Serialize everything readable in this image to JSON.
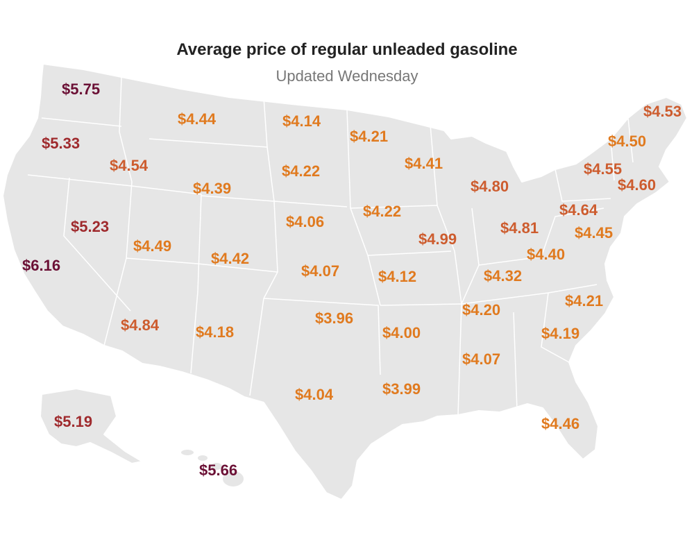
{
  "header": {
    "title": "Average price of regular unleaded gasoline",
    "subtitle": "Updated Wednesday"
  },
  "price_tiers": {
    "low": "#e07a1f",
    "mid": "#cd5c2e",
    "high": "#9f2a2d",
    "very_high": "#6b1035"
  },
  "states": [
    {
      "state": "WA",
      "price": "$5.75",
      "tier": "very_high"
    },
    {
      "state": "OR",
      "price": "$5.33",
      "tier": "high"
    },
    {
      "state": "CA",
      "price": "$6.16",
      "tier": "very_high"
    },
    {
      "state": "NV",
      "price": "$5.23",
      "tier": "high"
    },
    {
      "state": "ID",
      "price": "$4.54",
      "tier": "mid"
    },
    {
      "state": "MT",
      "price": "$4.44",
      "tier": "low"
    },
    {
      "state": "WY",
      "price": "$4.39",
      "tier": "low"
    },
    {
      "state": "UT",
      "price": "$4.49",
      "tier": "low"
    },
    {
      "state": "AZ",
      "price": "$4.84",
      "tier": "mid"
    },
    {
      "state": "CO",
      "price": "$4.42",
      "tier": "low"
    },
    {
      "state": "NM",
      "price": "$4.18",
      "tier": "low"
    },
    {
      "state": "ND",
      "price": "$4.14",
      "tier": "low"
    },
    {
      "state": "SD",
      "price": "$4.22",
      "tier": "low"
    },
    {
      "state": "NE",
      "price": "$4.06",
      "tier": "low"
    },
    {
      "state": "KS",
      "price": "$4.07",
      "tier": "low"
    },
    {
      "state": "OK",
      "price": "$3.96",
      "tier": "low"
    },
    {
      "state": "TX",
      "price": "$4.04",
      "tier": "low"
    },
    {
      "state": "MN",
      "price": "$4.21",
      "tier": "low"
    },
    {
      "state": "IA",
      "price": "$4.22",
      "tier": "low"
    },
    {
      "state": "MO",
      "price": "$4.12",
      "tier": "low"
    },
    {
      "state": "AR",
      "price": "$4.00",
      "tier": "low"
    },
    {
      "state": "LA",
      "price": "$3.99",
      "tier": "low"
    },
    {
      "state": "WI",
      "price": "$4.41",
      "tier": "low"
    },
    {
      "state": "IL",
      "price": "$4.99",
      "tier": "mid"
    },
    {
      "state": "MI",
      "price": "$4.80",
      "tier": "mid"
    },
    {
      "state": "IN",
      "price": "$4.81",
      "tier": "mid"
    },
    {
      "state": "KY",
      "price": "$4.32",
      "tier": "low"
    },
    {
      "state": "TN",
      "price": "$4.20",
      "tier": "low"
    },
    {
      "state": "AL",
      "price": "$4.07",
      "tier": "low"
    },
    {
      "state": "OH",
      "price": "$4.64",
      "tier": "mid"
    },
    {
      "state": "WV",
      "price": "$4.40",
      "tier": "low"
    },
    {
      "state": "VA",
      "price": "$4.45",
      "tier": "low"
    },
    {
      "state": "NC",
      "price": "$4.21",
      "tier": "low"
    },
    {
      "state": "SC",
      "price": "$4.19",
      "tier": "low"
    },
    {
      "state": "FL",
      "price": "$4.46",
      "tier": "low"
    },
    {
      "state": "NY",
      "price": "$4.55",
      "tier": "mid"
    },
    {
      "state": "NJ",
      "price": "$4.60",
      "tier": "mid"
    },
    {
      "state": "VT",
      "price": "$4.50",
      "tier": "low"
    },
    {
      "state": "ME",
      "price": "$4.53",
      "tier": "mid"
    },
    {
      "state": "AK",
      "price": "$5.19",
      "tier": "high"
    },
    {
      "state": "HI",
      "price": "$5.66",
      "tier": "very_high"
    }
  ]
}
